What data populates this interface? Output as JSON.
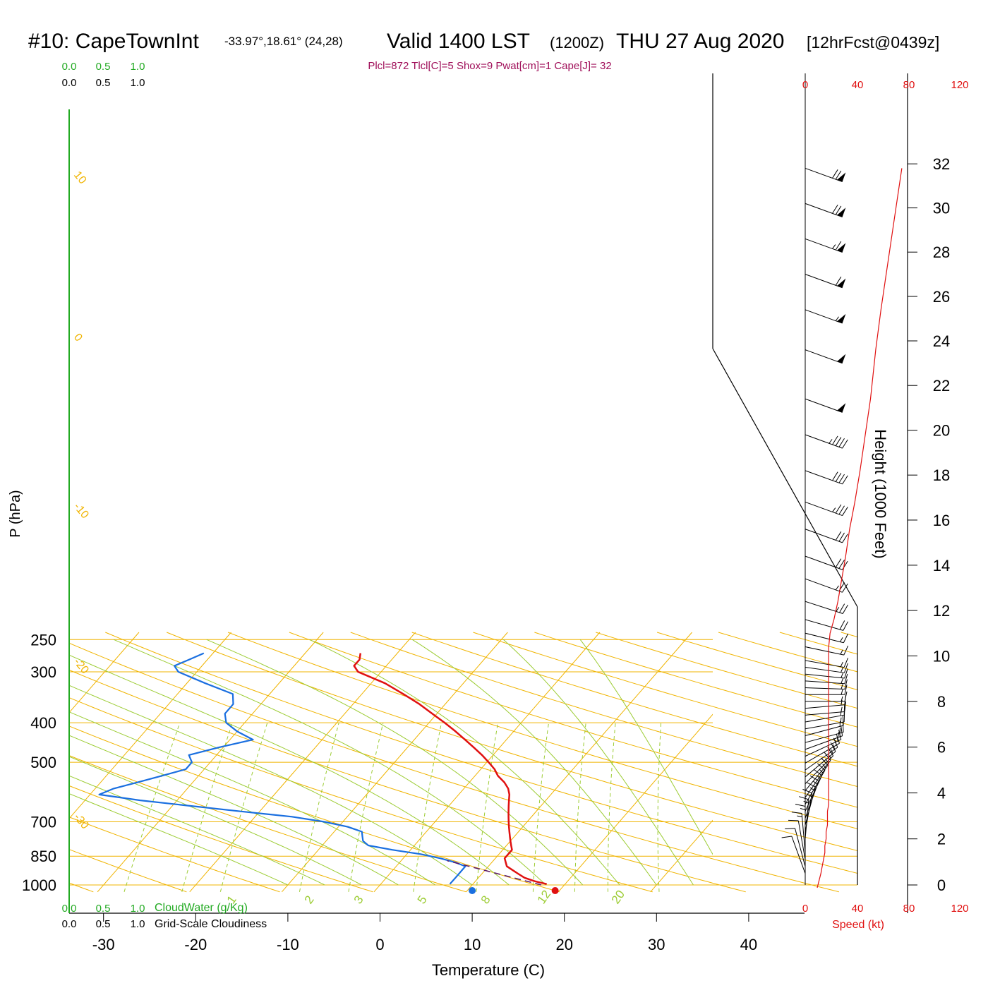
{
  "header": {
    "station": "#10: CapeTownInt",
    "coords": "-33.97°,18.61° (24,28)",
    "valid": "Valid 1400 LST",
    "utc": "(1200Z)",
    "date": "THU 27 Aug 2020",
    "forecast": "[12hrFcst@0439z]",
    "indices": "Plcl=872 Tlcl[C]=5 Shox=9 Pwat[cm]=1 Cape[J]= 32"
  },
  "colors": {
    "isobar": "#f0b400",
    "isotherm": "#f0b400",
    "dry_adiabat": "#f0b400",
    "moist_adiabat": "#9ccc33",
    "mixing_ratio": "#9ccc33",
    "temperature": "#e01010",
    "dewpoint": "#1a6fe0",
    "parcel": "#5a1a6a",
    "cloud_axis": "#22aa22",
    "speed": "#e01010",
    "indices_text": "#a0105a"
  },
  "chart_data": {
    "type": "line",
    "subtype": "skew-T log-p sounding",
    "xlabel": "Temperature (C)",
    "ylabel": "P (hPa)",
    "xticks": [
      "-30",
      "-20",
      "-10",
      "0",
      "10",
      "20",
      "30",
      "40"
    ],
    "yticks": [
      "250",
      "300",
      "400",
      "500",
      "700",
      "850",
      "1000"
    ],
    "right_axis_label": "Height (1000 Feet)",
    "right_ticks": [
      "0",
      "2",
      "4",
      "6",
      "8",
      "10",
      "12",
      "14",
      "16",
      "18",
      "20",
      "22",
      "24",
      "26",
      "28",
      "30",
      "32"
    ],
    "speed_ticks_top": [
      "0",
      "40",
      "80",
      "120"
    ],
    "speed_ticks_bottom": [
      "0",
      "40",
      "80",
      "120"
    ],
    "speed_label": "Speed (kt)",
    "cloud_ticks_green": [
      "0.0",
      "0.5",
      "1.0"
    ],
    "cloud_ticks_black": [
      "0.0",
      "0.5",
      "1.0"
    ],
    "cloud_water_label": "CloudWater (g/Kg)",
    "cloudiness_label": "Grid-Scale Cloudiness",
    "isotherm_labels": [
      "10",
      "0",
      "-10",
      "-20",
      "-30"
    ],
    "isotherm_labels_right": [
      "0",
      "10",
      "20",
      "30"
    ],
    "mixing_ratio_labels": [
      "1",
      "2",
      "3",
      "5",
      "8",
      "12",
      "20"
    ],
    "surface_temperature": 19,
    "surface_dewpoint": 10,
    "series": [
      {
        "key": "temperature",
        "p": [
          995,
          980,
          960,
          940,
          920,
          900,
          880,
          860,
          840,
          820,
          800,
          780,
          760,
          740,
          720,
          700,
          680,
          660,
          640,
          620,
          600,
          580,
          560,
          540,
          520,
          500,
          480,
          460,
          440,
          420,
          400,
          380,
          360,
          340,
          320,
          300,
          290,
          280,
          270
        ],
        "t": [
          18,
          16.5,
          15,
          14,
          13,
          12,
          11.5,
          11,
          11,
          11,
          10.5,
          10,
          9.5,
          9,
          8.5,
          8,
          7.5,
          7,
          6.5,
          6,
          5.5,
          4.8,
          3.8,
          2.5,
          1.5,
          0.2,
          -1.2,
          -2.8,
          -4.5,
          -6.3,
          -8.3,
          -10.5,
          -12.8,
          -15.5,
          -18.5,
          -22.5,
          -23.5,
          -23.5,
          -24
        ]
      },
      {
        "key": "dewpoint",
        "p": [
          995,
          980,
          960,
          940,
          920,
          900,
          880,
          860,
          840,
          820,
          800,
          780,
          760,
          740,
          720,
          700,
          680,
          660,
          640,
          620,
          600,
          580,
          560,
          540,
          520,
          500,
          480,
          460,
          440,
          420,
          400,
          380,
          360,
          340,
          320,
          300,
          290,
          280,
          270
        ],
        "t": [
          7.5,
          7.5,
          7.5,
          7.5,
          7.5,
          7.5,
          6,
          4,
          1.5,
          -2,
          -5,
          -6,
          -6.5,
          -7,
          -9,
          -12,
          -16,
          -22,
          -28,
          -34,
          -39,
          -38,
          -36,
          -34,
          -32,
          -32,
          -33,
          -30.5,
          -27.5,
          -30,
          -32,
          -33,
          -33,
          -34,
          -38,
          -42,
          -43,
          -42,
          -41
        ]
      },
      {
        "key": "parcel",
        "p": [
          1000,
          872
        ],
        "t": [
          17.5,
          5
        ]
      }
    ],
    "wind": {
      "heights_kft": [
        0.5,
        0.8,
        1.1,
        1.4,
        1.7,
        2.0,
        2.3,
        2.6,
        2.9,
        3.2,
        3.5,
        3.8,
        4.1,
        4.4,
        4.7,
        5.0,
        5.3,
        5.6,
        5.9,
        6.2,
        6.5,
        6.8,
        7.1,
        7.4,
        7.7,
        8.0,
        8.3,
        8.6,
        8.9,
        9.2,
        9.5,
        9.8,
        10.4,
        11.0,
        11.6,
        12.4,
        13.4,
        14.4,
        15.6,
        16.8,
        18.2,
        19.8,
        21.4,
        23.6,
        25.4,
        27.0,
        28.6,
        30.2,
        31.8
      ],
      "speed_kt": [
        12,
        13,
        14,
        15,
        15,
        16,
        16,
        17,
        17,
        17,
        18,
        18,
        18,
        18,
        18,
        18,
        18,
        18,
        18,
        18,
        18,
        18,
        18,
        18,
        18,
        18,
        18,
        18,
        18,
        18,
        18,
        18,
        18,
        19,
        22,
        25,
        28,
        31,
        34,
        38,
        42,
        46,
        50,
        54,
        58,
        62,
        66,
        70,
        74
      ],
      "direction_deg": [
        160,
        165,
        170,
        175,
        180,
        185,
        190,
        195,
        200,
        205,
        210,
        215,
        220,
        225,
        230,
        235,
        240,
        245,
        250,
        255,
        255,
        260,
        260,
        265,
        265,
        270,
        270,
        272,
        274,
        276,
        278,
        280,
        282,
        284,
        286,
        288,
        290,
        290,
        290,
        290,
        290,
        290,
        290,
        290,
        290,
        290,
        290,
        290,
        290
      ]
    }
  }
}
